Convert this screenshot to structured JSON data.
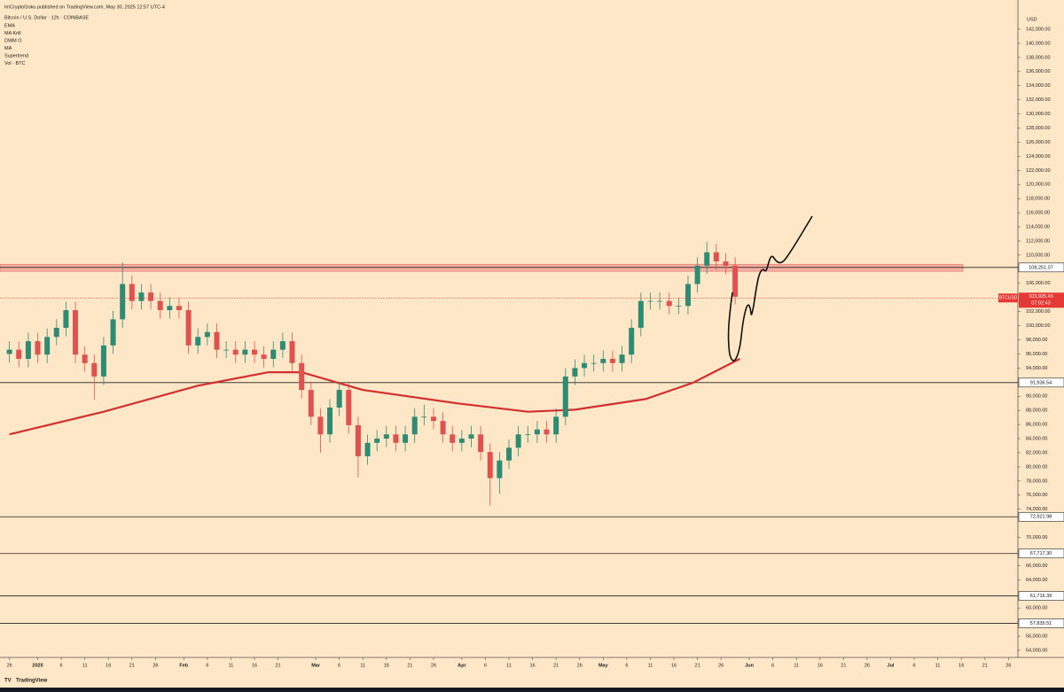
{
  "header": {
    "publisher": "ImCryptoGoku published on TradingView.com, May 30, 2025 12:57 UTC-4",
    "symbol": "Bitcoin / U.S. Dollar · 12h · COINBASE",
    "indicators": [
      "EMA",
      "MA Krill",
      "DWM O",
      "MA",
      "Supertrend",
      "Vol · BTC"
    ]
  },
  "currency": "USD",
  "footer": {
    "brand": "TradingView"
  },
  "chart_data": {
    "type": "candlestick",
    "up_color": "#2e8b74",
    "down_color": "#e0524f",
    "xlim": [
      -2,
      214
    ],
    "ylim": [
      53750,
      146140
    ],
    "x": [
      0,
      2,
      4,
      6,
      8,
      10,
      12,
      14,
      16,
      18,
      20,
      22,
      24,
      26,
      28,
      30,
      32,
      34,
      36,
      38,
      40,
      42,
      44,
      46,
      48,
      50,
      52,
      54,
      56,
      58,
      60,
      62,
      64,
      66,
      68,
      70,
      72,
      74,
      76,
      78,
      80,
      82,
      84,
      86,
      88,
      90,
      92,
      94,
      96,
      98,
      100,
      102,
      104,
      106,
      108,
      110,
      112,
      114,
      116,
      118,
      120,
      122,
      124,
      126,
      128,
      130,
      132,
      134,
      136,
      138,
      140,
      142,
      144,
      146,
      148,
      150,
      152,
      154
    ],
    "open": [
      96000,
      96600,
      95300,
      97800,
      95900,
      98400,
      99700,
      102200,
      95900,
      94700,
      92800,
      97200,
      100900,
      105900,
      103500,
      104700,
      103500,
      102200,
      102800,
      102200,
      97200,
      98400,
      99100,
      96600,
      96600,
      95900,
      96600,
      95900,
      95300,
      96600,
      97800,
      94700,
      90900,
      87100,
      84600,
      88400,
      90900,
      85900,
      81500,
      83400,
      84000,
      84600,
      83400,
      84600,
      87100,
      87100,
      86500,
      84600,
      83400,
      84000,
      84600,
      82100,
      78400,
      80900,
      82700,
      84600,
      84600,
      85300,
      84600,
      87100,
      92800,
      94000,
      94700,
      94700,
      95300,
      94700,
      95900,
      99700,
      103500,
      103500,
      103500,
      102800,
      102800,
      105900,
      108500,
      110400,
      109100,
      108500
    ],
    "high": [
      97800,
      97800,
      99000,
      99000,
      99600,
      100900,
      103400,
      103400,
      97100,
      95900,
      98400,
      102100,
      109000,
      107100,
      105900,
      105900,
      104700,
      104000,
      104000,
      103400,
      99600,
      100300,
      100300,
      97800,
      97800,
      97800,
      97800,
      97100,
      97800,
      99000,
      99000,
      95900,
      92100,
      88300,
      89600,
      92100,
      92100,
      87100,
      84600,
      85200,
      85800,
      85800,
      85800,
      88300,
      88800,
      88300,
      87700,
      85800,
      85200,
      85800,
      85800,
      83300,
      82100,
      83900,
      85800,
      85800,
      86500,
      86500,
      88300,
      94000,
      95200,
      95900,
      95900,
      96500,
      96500,
      97100,
      100900,
      104700,
      104700,
      104700,
      104700,
      104000,
      107100,
      109700,
      111900,
      111600,
      110300,
      109700
    ],
    "low": [
      94800,
      94100,
      94100,
      94700,
      94700,
      97200,
      98500,
      94700,
      93500,
      89500,
      91600,
      96000,
      99700,
      102300,
      102300,
      102300,
      101000,
      101000,
      101000,
      96000,
      96000,
      97200,
      95400,
      95400,
      94700,
      94700,
      94700,
      94100,
      94100,
      95400,
      93500,
      89700,
      85900,
      82000,
      83400,
      87200,
      84700,
      78500,
      80300,
      82200,
      82800,
      82200,
      82200,
      83400,
      85900,
      85300,
      83400,
      82200,
      82200,
      82800,
      80900,
      74500,
      76200,
      79700,
      81500,
      83400,
      83400,
      83400,
      83400,
      85900,
      91600,
      92800,
      93500,
      93500,
      93500,
      93500,
      94700,
      98500,
      102300,
      102300,
      101600,
      101600,
      101600,
      104700,
      107300,
      107900,
      107300,
      103000
    ],
    "close": [
      96600,
      95300,
      97800,
      95900,
      98400,
      99700,
      102200,
      95900,
      94700,
      92800,
      97200,
      100900,
      105900,
      103500,
      104700,
      103500,
      102200,
      102800,
      102200,
      97200,
      98400,
      99100,
      96600,
      96600,
      95900,
      96600,
      95900,
      95300,
      96600,
      97800,
      94700,
      90900,
      87100,
      84600,
      88400,
      90900,
      85900,
      81500,
      83400,
      84000,
      84600,
      83400,
      84600,
      87100,
      87100,
      86500,
      84600,
      83400,
      84000,
      84600,
      82100,
      78400,
      80900,
      82700,
      84600,
      84600,
      85300,
      84600,
      87100,
      92800,
      94000,
      94700,
      94700,
      95300,
      94700,
      95900,
      99700,
      103500,
      103500,
      103500,
      102800,
      102800,
      105900,
      108500,
      110400,
      109100,
      108500,
      104100
    ],
    "ma_line": {
      "color": "#d32f2f",
      "x": [
        0,
        20,
        40,
        55,
        62,
        75,
        95,
        110,
        120,
        135,
        145,
        155
      ],
      "values": [
        84600,
        87800,
        91500,
        93400,
        93400,
        90900,
        89000,
        87800,
        88100,
        89600,
        91900,
        95300
      ]
    },
    "zone": {
      "low": 107700,
      "high": 108700,
      "color": "#f08080"
    },
    "levels": [
      {
        "value": 108251.07,
        "label": "108,251.07"
      },
      {
        "value": 91936.54,
        "label": "91,936.54"
      },
      {
        "value": 72921.98,
        "label": "72,921.98"
      },
      {
        "value": 67717.3,
        "label": "67,717.30"
      },
      {
        "value": 61716.39,
        "label": "61,716.39"
      },
      {
        "value": 57835.51,
        "label": "57,835.51"
      }
    ],
    "last_price": {
      "value": 103925.45,
      "label": "103,925.45",
      "symbol": "BTCUSD",
      "countdown": "07:02:43",
      "color": "#e53935"
    },
    "grid": false,
    "yticks": [
      {
        "value": 142000,
        "label": "142,000.00"
      },
      {
        "value": 140000,
        "label": "140,000.00"
      },
      {
        "value": 138000,
        "label": "138,000.00"
      },
      {
        "value": 136000,
        "label": "136,000.00"
      },
      {
        "value": 134000,
        "label": "134,000.00"
      },
      {
        "value": 132000,
        "label": "132,000.00"
      },
      {
        "value": 130000,
        "label": "130,000.00"
      },
      {
        "value": 128000,
        "label": "128,000.00"
      },
      {
        "value": 126000,
        "label": "126,000.00"
      },
      {
        "value": 124000,
        "label": "124,000.00"
      },
      {
        "value": 122000,
        "label": "122,000.00"
      },
      {
        "value": 120000,
        "label": "120,000.00"
      },
      {
        "value": 118000,
        "label": "118,000.00"
      },
      {
        "value": 116000,
        "label": "116,000.00"
      },
      {
        "value": 114000,
        "label": "114,000.00"
      },
      {
        "value": 112000,
        "label": "112,000.00"
      },
      {
        "value": 110000,
        "label": "110,000.00"
      },
      {
        "value": 106000,
        "label": "106,000.00"
      },
      {
        "value": 102000,
        "label": "102,000.00"
      },
      {
        "value": 100000,
        "label": "100,000.00"
      },
      {
        "value": 98000,
        "label": "98,000.00"
      },
      {
        "value": 96000,
        "label": "96,000.00"
      },
      {
        "value": 94000,
        "label": "94,000.00"
      },
      {
        "value": 90000,
        "label": "90,000.00"
      },
      {
        "value": 88000,
        "label": "88,000.00"
      },
      {
        "value": 86000,
        "label": "86,000.00"
      },
      {
        "value": 84000,
        "label": "84,000.00"
      },
      {
        "value": 82000,
        "label": "82,000.00"
      },
      {
        "value": 80000,
        "label": "80,000.00"
      },
      {
        "value": 78000,
        "label": "78,000.00"
      },
      {
        "value": 76000,
        "label": "76,000.00"
      },
      {
        "value": 74000,
        "label": "74,000.00"
      },
      {
        "value": 70000,
        "label": "70,000.00"
      },
      {
        "value": 66000,
        "label": "66,000.00"
      },
      {
        "value": 64000,
        "label": "64,000.00"
      },
      {
        "value": 60000,
        "label": "60,000.00"
      },
      {
        "value": 56000,
        "label": "56,000.00"
      },
      {
        "value": 54000,
        "label": "54,000.00"
      }
    ],
    "xticks": [
      {
        "value": 0,
        "label": "26"
      },
      {
        "value": 6,
        "label": "2025"
      },
      {
        "value": 11,
        "label": "6"
      },
      {
        "value": 16,
        "label": "11"
      },
      {
        "value": 21,
        "label": "16"
      },
      {
        "value": 26,
        "label": "21"
      },
      {
        "value": 31,
        "label": "26"
      },
      {
        "value": 37,
        "label": "Feb"
      },
      {
        "value": 42,
        "label": "6"
      },
      {
        "value": 47,
        "label": "11"
      },
      {
        "value": 52,
        "label": "16"
      },
      {
        "value": 57,
        "label": "21"
      },
      {
        "value": 65,
        "label": "Mar"
      },
      {
        "value": 70,
        "label": "6"
      },
      {
        "value": 75,
        "label": "11"
      },
      {
        "value": 80,
        "label": "16"
      },
      {
        "value": 85,
        "label": "21"
      },
      {
        "value": 90,
        "label": "26"
      },
      {
        "value": 96,
        "label": "Apr"
      },
      {
        "value": 101,
        "label": "6"
      },
      {
        "value": 106,
        "label": "11"
      },
      {
        "value": 111,
        "label": "16"
      },
      {
        "value": 116,
        "label": "21"
      },
      {
        "value": 121,
        "label": "26"
      },
      {
        "value": 126,
        "label": "May"
      },
      {
        "value": 131,
        "label": "6"
      },
      {
        "value": 136,
        "label": "11"
      },
      {
        "value": 141,
        "label": "16"
      },
      {
        "value": 146,
        "label": "21"
      },
      {
        "value": 151,
        "label": "26"
      },
      {
        "value": 157,
        "label": "Jun"
      },
      {
        "value": 162,
        "label": "6"
      },
      {
        "value": 167,
        "label": "11"
      },
      {
        "value": 172,
        "label": "16"
      },
      {
        "value": 177,
        "label": "21"
      },
      {
        "value": 182,
        "label": "26"
      },
      {
        "value": 187,
        "label": "Jul"
      },
      {
        "value": 192,
        "label": "6"
      },
      {
        "value": 197,
        "label": "11"
      },
      {
        "value": 202,
        "label": "16"
      },
      {
        "value": 207,
        "label": "21"
      },
      {
        "value": 212,
        "label": "26"
      }
    ]
  }
}
